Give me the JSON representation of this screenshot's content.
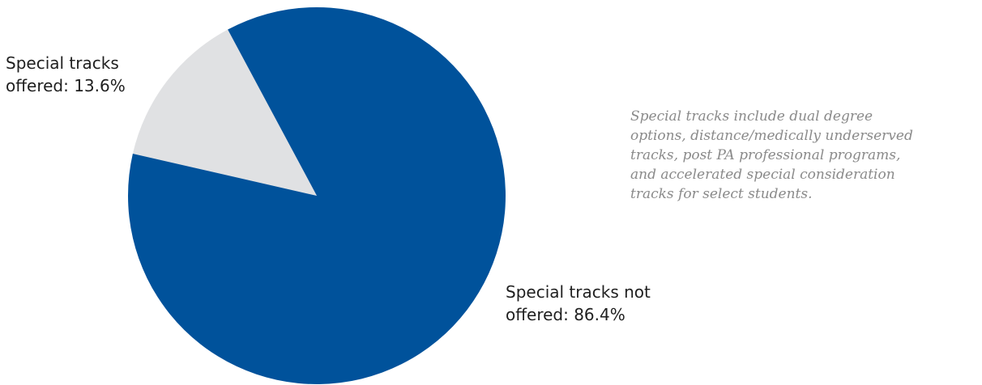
{
  "chart_data": {
    "type": "pie",
    "title": "",
    "categories": [
      "Special tracks offered",
      "Special tracks not offered"
    ],
    "values": [
      13.6,
      86.4
    ],
    "unit": "%",
    "colors": [
      "#e0e1e3",
      "#00529b"
    ],
    "data_labels": [
      [
        "Special tracks",
        "offered: 13.6%"
      ],
      [
        "Special tracks not",
        "offered: 86.4%"
      ]
    ]
  },
  "note": {
    "lines": [
      "Special tracks include dual degree",
      "options, distance/medically underserved",
      "tracks, post PA professional programs,",
      "and accelerated special consideration",
      "tracks for select students."
    ]
  }
}
